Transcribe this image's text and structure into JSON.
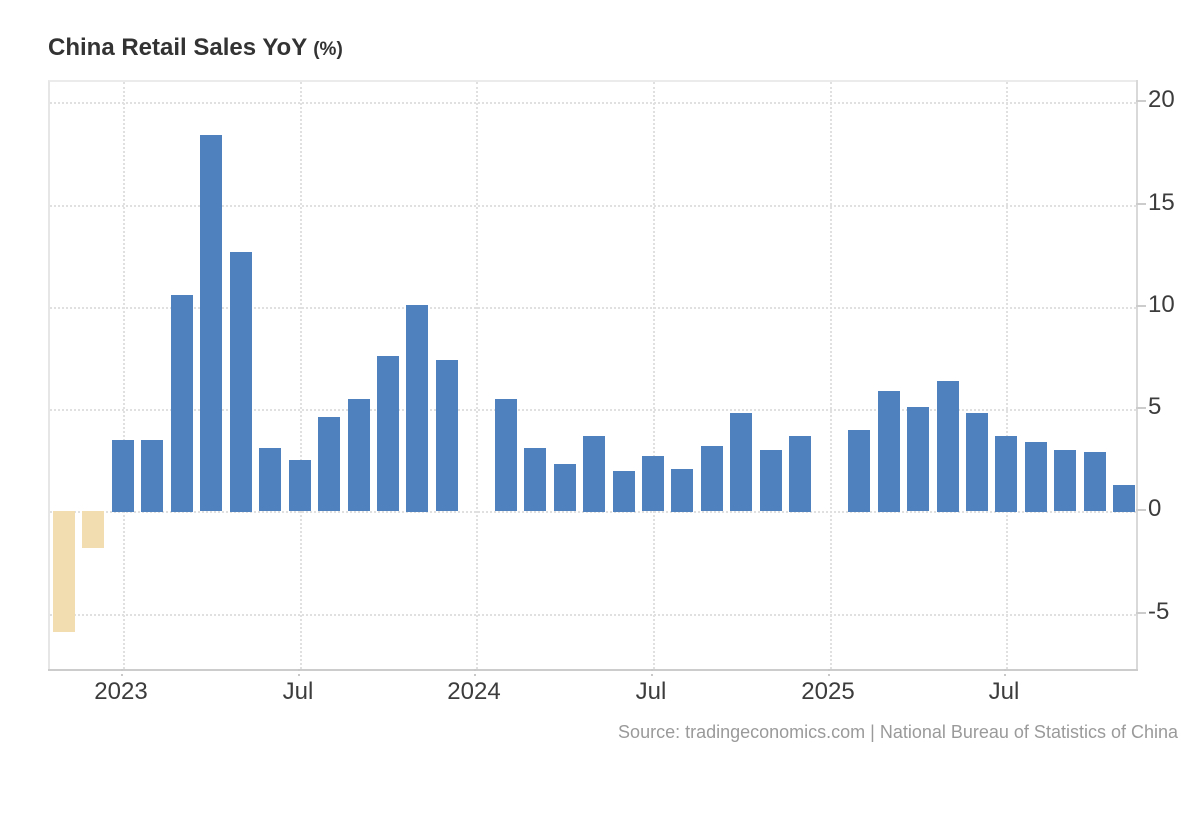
{
  "header": {
    "title": "China Retail Sales YoY",
    "unit": "(%)"
  },
  "footer": {
    "source": "Source: tradingeconomics.com | National Bureau of Statistics of China"
  },
  "chart_data": {
    "type": "bar",
    "title": "China Retail Sales YoY (%)",
    "xlabel": "",
    "ylabel": "",
    "legend_position": "none",
    "grid": "dotted",
    "ylim": [
      -7.8,
      21
    ],
    "y_ticks": [
      20,
      15,
      10,
      5,
      0,
      -5
    ],
    "x": [
      "Nov 2022",
      "Dec 2022",
      "Jan 2023",
      "Feb 2023",
      "Mar 2023",
      "Apr 2023",
      "May 2023",
      "Jun 2023",
      "Jul 2023",
      "Aug 2023",
      "Sep 2023",
      "Oct 2023",
      "Nov 2023",
      "Dec 2023",
      "Jan 2024",
      "Feb 2024",
      "Mar 2024",
      "Apr 2024",
      "May 2024",
      "Jun 2024",
      "Jul 2024",
      "Aug 2024",
      "Sep 2024",
      "Oct 2024",
      "Nov 2024",
      "Dec 2024",
      "Jan 2025",
      "Feb 2025",
      "Mar 2025",
      "Apr 2025",
      "May 2025",
      "Jun 2025",
      "Jul 2025",
      "Aug 2025",
      "Sep 2025",
      "Oct 2025",
      "Nov 2025"
    ],
    "values": [
      -5.9,
      -1.8,
      3.5,
      3.5,
      10.6,
      18.4,
      12.7,
      3.1,
      2.5,
      4.6,
      5.5,
      7.6,
      10.1,
      7.4,
      null,
      5.5,
      3.1,
      2.3,
      3.7,
      2.0,
      2.7,
      2.1,
      3.2,
      4.8,
      3.0,
      3.7,
      null,
      4.0,
      5.9,
      5.1,
      6.4,
      4.8,
      3.7,
      3.4,
      3.0,
      2.9,
      1.3
    ],
    "x_tick_positions": [
      {
        "label": "2023",
        "month_index": 2
      },
      {
        "label": "Jul",
        "month_index": 8
      },
      {
        "label": "2024",
        "month_index": 14
      },
      {
        "label": "Jul",
        "month_index": 20
      },
      {
        "label": "2025",
        "month_index": 26
      },
      {
        "label": "Jul",
        "month_index": 32
      }
    ],
    "colors": {
      "bar_positive": "#4E81BD",
      "bar_negative": "#F2DDB0"
    }
  }
}
